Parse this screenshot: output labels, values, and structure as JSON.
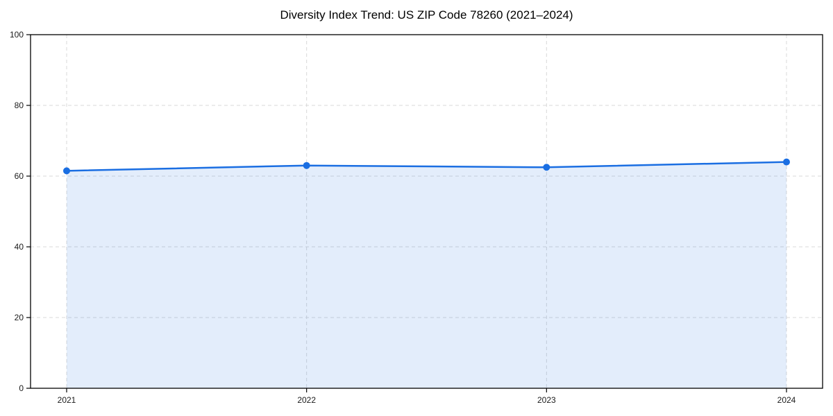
{
  "chart_data": {
    "type": "area",
    "title": "Diversity Index Trend: US ZIP Code 78260 (2021–2024)",
    "categories": [
      "2021",
      "2022",
      "2023",
      "2024"
    ],
    "series": [
      {
        "name": "Diversity Index",
        "values": [
          61.5,
          63,
          62.5,
          64
        ]
      }
    ],
    "xlabel": "",
    "ylabel": "",
    "ylim": [
      0,
      100
    ],
    "yticks": [
      0,
      20,
      40,
      60,
      80,
      100
    ],
    "grid": "dashed, horizontal and vertical",
    "legend_position": "none",
    "colors": {
      "line": "#1a6ee2",
      "marker": "#1a6ee2",
      "area_fill": "#1a6ee2",
      "area_fill_opacity": 0.12,
      "grid": "#d9d9d9",
      "axis": "#000000",
      "tick_label": "#1a1a1a",
      "background": "#ffffff"
    }
  }
}
